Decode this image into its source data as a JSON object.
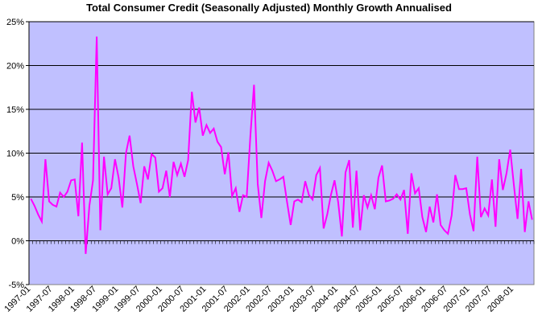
{
  "chart_data": {
    "type": "line",
    "title": "Total Consumer Credit (Seasonally Adjusted) Monthly Growth Annualised",
    "xlabel": "",
    "ylabel": "",
    "ylim": [
      -5,
      25
    ],
    "y_ticks": [
      "-5%",
      "0%",
      "5%",
      "10%",
      "15%",
      "20%",
      "25%"
    ],
    "y_tick_values": [
      -5,
      0,
      5,
      10,
      15,
      20,
      25
    ],
    "x_ticks": [
      "1997-01",
      "1997-07",
      "1998-01",
      "1998-07",
      "1999-01",
      "1999-07",
      "2000-01",
      "2000-07",
      "2001-01",
      "2001-07",
      "2002-01",
      "2002-07",
      "2003-01",
      "2003-07",
      "2004-01",
      "2004-07",
      "2005-01",
      "2005-07",
      "2006-01",
      "2006-07",
      "2007-01",
      "2007-07",
      "2008-01"
    ],
    "grid": true,
    "legend": "none",
    "colors": {
      "plot_bg": "#c0c0ff",
      "line": "#ff00ff",
      "grid": "#000000"
    },
    "series": [
      {
        "values": [
          4.8,
          4.0,
          3.0,
          2.2,
          9.3,
          4.5,
          4.1,
          3.9,
          5.5,
          5.0,
          5.6,
          6.9,
          7.0,
          2.8,
          11.2,
          -1.5,
          4.0,
          6.9,
          23.3,
          1.2,
          9.6,
          5.3,
          6.0,
          9.3,
          7.2,
          3.8,
          10.0,
          12.0,
          8.5,
          6.5,
          4.3,
          8.5,
          7.0,
          9.9,
          9.5,
          5.6,
          6.0,
          8.0,
          5.0,
          9.0,
          7.5,
          8.8,
          7.3,
          9.2,
          17.0,
          13.5,
          15.2,
          12.0,
          13.2,
          12.3,
          12.8,
          11.3,
          10.7,
          7.6,
          10.1,
          5.1,
          6.0,
          3.3,
          5.2,
          5.0,
          12.0,
          17.8,
          6.5,
          2.6,
          6.8,
          8.9,
          8.0,
          6.8,
          7.0,
          7.3,
          4.5,
          1.8,
          4.5,
          4.7,
          4.4,
          6.8,
          5.2,
          4.7,
          7.5,
          8.3,
          1.4,
          3.0,
          5.2,
          6.9,
          4.4,
          0.5,
          7.8,
          9.2,
          1.5,
          8.0,
          1.2,
          5.2,
          3.8,
          5.2,
          3.6,
          7.2,
          8.6,
          4.5,
          4.6,
          4.8,
          5.3,
          4.7,
          5.8,
          0.8,
          7.7,
          5.4,
          6.0,
          2.7,
          1.0,
          3.9,
          2.1,
          5.3,
          1.8,
          1.2,
          0.8,
          2.9,
          7.5,
          5.9,
          5.9,
          6.0,
          3.0,
          1.1,
          9.6,
          2.7,
          3.7,
          2.9,
          7.0,
          1.6,
          9.3,
          5.8,
          7.7,
          10.4,
          6.4,
          2.5,
          8.2,
          1.0,
          4.5,
          2.4
        ]
      }
    ]
  }
}
